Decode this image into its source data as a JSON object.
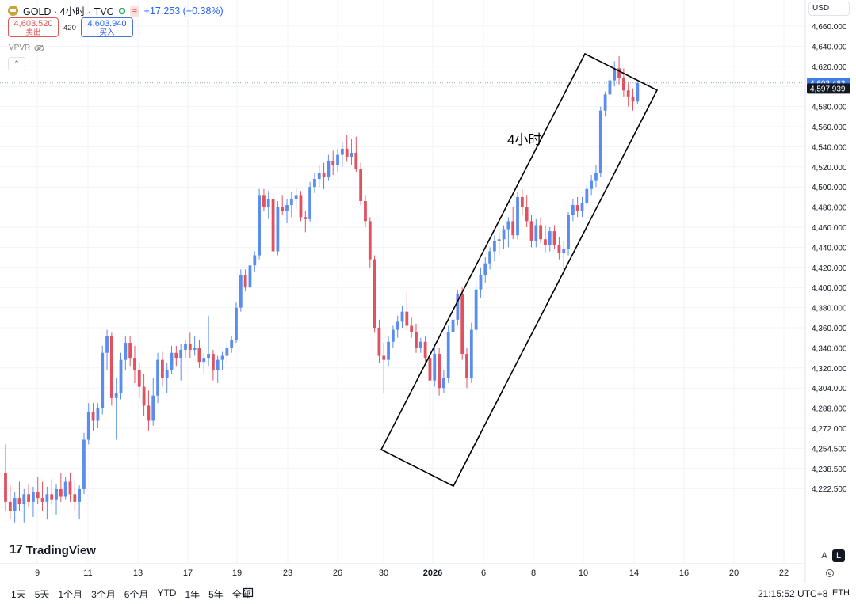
{
  "header": {
    "symbol_line": "GOLD · 4小时 · TVC",
    "change": "+17.253 (+0.38%)",
    "sell_price": "4,603.520",
    "sell_label": "卖出",
    "spread": "420",
    "buy_price": "4,603.940",
    "buy_label": "买入",
    "indicator": "VPVR",
    "collapse_glyph": "⌃",
    "currency": "USD"
  },
  "colors": {
    "up": "#5b8def",
    "down": "#e05260",
    "price_tag": "#3f7be6",
    "bid_tag": "#131722"
  },
  "annotation_text": "4小时",
  "brand": "TradingView",
  "bottom": {
    "ranges": [
      "1天",
      "5天",
      "1个月",
      "3个月",
      "6个月",
      "YTD",
      "1年",
      "5年",
      "全部"
    ],
    "clock": "21:15:52 UTC+8",
    "session": "ETH",
    "scale_a": "A",
    "scale_l": "L"
  },
  "chart_data": {
    "type": "candlestick",
    "y_axis_labels": [
      "4,660.000",
      "4,640.000",
      "4,620.000",
      "4,600.000",
      "4,580.000",
      "4,560.000",
      "4,540.000",
      "4,520.000",
      "4,500.000",
      "4,480.000",
      "4,460.000",
      "4,440.000",
      "4,420.000",
      "4,400.000",
      "4,380.000",
      "4,360.000",
      "4,340.000",
      "4,320.000",
      "4,304.000",
      "4,288.000",
      "4,272.000",
      "4,254.500",
      "4,238.500",
      "4,222.500"
    ],
    "x_axis_labels": [
      "9",
      "11",
      "13",
      "17",
      "19",
      "23",
      "26",
      "30",
      "2026",
      "6",
      "8",
      "10",
      "14",
      "16",
      "20",
      "22"
    ],
    "last_price_label": "4,603.483",
    "bid_label": "4,597.939",
    "ohlc": [
      [
        4235,
        4258,
        4205,
        4212
      ],
      [
        4212,
        4225,
        4198,
        4205
      ],
      [
        4205,
        4220,
        4195,
        4215
      ],
      [
        4215,
        4228,
        4205,
        4210
      ],
      [
        4210,
        4222,
        4195,
        4218
      ],
      [
        4218,
        4226,
        4208,
        4212
      ],
      [
        4212,
        4224,
        4200,
        4220
      ],
      [
        4220,
        4232,
        4210,
        4215
      ],
      [
        4215,
        4228,
        4205,
        4212
      ],
      [
        4212,
        4224,
        4198,
        4218
      ],
      [
        4218,
        4230,
        4210,
        4214
      ],
      [
        4214,
        4226,
        4202,
        4222
      ],
      [
        4222,
        4235,
        4212,
        4216
      ],
      [
        4216,
        4232,
        4214,
        4228
      ],
      [
        4228,
        4235,
        4212,
        4218
      ],
      [
        4218,
        4230,
        4205,
        4212
      ],
      [
        4212,
        4225,
        4198,
        4222
      ],
      [
        4222,
        4268,
        4218,
        4262
      ],
      [
        4262,
        4292,
        4258,
        4285
      ],
      [
        4285,
        4292,
        4270,
        4278
      ],
      [
        4278,
        4292,
        4272,
        4288
      ],
      [
        4288,
        4342,
        4283,
        4335
      ],
      [
        4335,
        4358,
        4318,
        4352
      ],
      [
        4352,
        4355,
        4290,
        4296
      ],
      [
        4296,
        4312,
        4262,
        4300
      ],
      [
        4300,
        4335,
        4295,
        4328
      ],
      [
        4328,
        4352,
        4318,
        4345
      ],
      [
        4345,
        4352,
        4322,
        4330
      ],
      [
        4330,
        4342,
        4308,
        4318
      ],
      [
        4318,
        4325,
        4296,
        4305
      ],
      [
        4305,
        4315,
        4282,
        4290
      ],
      [
        4290,
        4302,
        4270,
        4278
      ],
      [
        4278,
        4312,
        4274,
        4298
      ],
      [
        4298,
        4335,
        4292,
        4328
      ],
      [
        4328,
        4336,
        4305,
        4312
      ],
      [
        4312,
        4325,
        4300,
        4318
      ],
      [
        4318,
        4342,
        4315,
        4335
      ],
      [
        4335,
        4342,
        4322,
        4330
      ],
      [
        4330,
        4344,
        4310,
        4338
      ],
      [
        4338,
        4348,
        4330,
        4344
      ],
      [
        4344,
        4355,
        4330,
        4338
      ],
      [
        4338,
        4352,
        4332,
        4340
      ],
      [
        4340,
        4348,
        4320,
        4326
      ],
      [
        4326,
        4335,
        4315,
        4330
      ],
      [
        4330,
        4372,
        4322,
        4334
      ],
      [
        4334,
        4338,
        4310,
        4318
      ],
      [
        4318,
        4332,
        4308,
        4328
      ],
      [
        4328,
        4336,
        4318,
        4332
      ],
      [
        4332,
        4346,
        4325,
        4340
      ],
      [
        4340,
        4352,
        4335,
        4348
      ],
      [
        4348,
        4385,
        4345,
        4380
      ],
      [
        4380,
        4418,
        4376,
        4412
      ],
      [
        4412,
        4418,
        4396,
        4400
      ],
      [
        4400,
        4428,
        4398,
        4422
      ],
      [
        4422,
        4436,
        4415,
        4432
      ],
      [
        4432,
        4498,
        4428,
        4492
      ],
      [
        4492,
        4498,
        4476,
        4480
      ],
      [
        4480,
        4496,
        4468,
        4488
      ],
      [
        4488,
        4492,
        4430,
        4436
      ],
      [
        4436,
        4486,
        4432,
        4480
      ],
      [
        4480,
        4492,
        4472,
        4476
      ],
      [
        4476,
        4488,
        4464,
        4482
      ],
      [
        4482,
        4495,
        4470,
        4488
      ],
      [
        4488,
        4500,
        4478,
        4492
      ],
      [
        4492,
        4496,
        4466,
        4470
      ],
      [
        4470,
        4476,
        4455,
        4468
      ],
      [
        4468,
        4505,
        4465,
        4500
      ],
      [
        4500,
        4514,
        4494,
        4508
      ],
      [
        4508,
        4522,
        4500,
        4514
      ],
      [
        4514,
        4524,
        4498,
        4510
      ],
      [
        4510,
        4532,
        4506,
        4526
      ],
      [
        4526,
        4536,
        4512,
        4522
      ],
      [
        4522,
        4538,
        4515,
        4532
      ],
      [
        4532,
        4545,
        4520,
        4538
      ],
      [
        4538,
        4552,
        4525,
        4530
      ],
      [
        4530,
        4548,
        4522,
        4534
      ],
      [
        4534,
        4550,
        4515,
        4518
      ],
      [
        4518,
        4524,
        4482,
        4486
      ],
      [
        4486,
        4492,
        4460,
        4466
      ],
      [
        4466,
        4470,
        4420,
        4428
      ],
      [
        4428,
        4432,
        4355,
        4360
      ],
      [
        4360,
        4368,
        4325,
        4332
      ],
      [
        4332,
        4345,
        4300,
        4328
      ],
      [
        4328,
        4352,
        4322,
        4346
      ],
      [
        4346,
        4362,
        4340,
        4358
      ],
      [
        4358,
        4372,
        4350,
        4366
      ],
      [
        4366,
        4382,
        4360,
        4376
      ],
      [
        4376,
        4395,
        4358,
        4362
      ],
      [
        4362,
        4370,
        4350,
        4356
      ],
      [
        4356,
        4364,
        4335,
        4340
      ],
      [
        4340,
        4350,
        4335,
        4346
      ],
      [
        4346,
        4352,
        4325,
        4330
      ],
      [
        4330,
        4338,
        4275,
        4310
      ],
      [
        4310,
        4340,
        4305,
        4334
      ],
      [
        4334,
        4340,
        4298,
        4304
      ],
      [
        4304,
        4318,
        4300,
        4312
      ],
      [
        4312,
        4362,
        4308,
        4356
      ],
      [
        4356,
        4372,
        4350,
        4368
      ],
      [
        4368,
        4398,
        4362,
        4394
      ],
      [
        4394,
        4400,
        4328,
        4334
      ],
      [
        4334,
        4340,
        4304,
        4312
      ],
      [
        4312,
        4365,
        4308,
        4358
      ],
      [
        4358,
        4406,
        4352,
        4398
      ],
      [
        4398,
        4420,
        4390,
        4412
      ],
      [
        4412,
        4430,
        4405,
        4424
      ],
      [
        4424,
        4440,
        4418,
        4436
      ],
      [
        4436,
        4452,
        4426,
        4446
      ],
      [
        4446,
        4455,
        4432,
        4448
      ],
      [
        4448,
        4462,
        4438,
        4458
      ],
      [
        4458,
        4470,
        4440,
        4466
      ],
      [
        4466,
        4480,
        4448,
        4452
      ],
      [
        4452,
        4495,
        4448,
        4490
      ],
      [
        4490,
        4498,
        4472,
        4480
      ],
      [
        4480,
        4492,
        4460,
        4466
      ],
      [
        4466,
        4472,
        4440,
        4446
      ],
      [
        4446,
        4468,
        4440,
        4462
      ],
      [
        4462,
        4470,
        4444,
        4448
      ],
      [
        4448,
        4462,
        4435,
        4442
      ],
      [
        4442,
        4460,
        4436,
        4456
      ],
      [
        4456,
        4462,
        4438,
        4442
      ],
      [
        4442,
        4450,
        4428,
        4434
      ],
      [
        4434,
        4446,
        4412,
        4438
      ],
      [
        4438,
        4475,
        4432,
        4472
      ],
      [
        4472,
        4488,
        4466,
        4482
      ],
      [
        4482,
        4490,
        4470,
        4476
      ],
      [
        4476,
        4490,
        4470,
        4484
      ],
      [
        4484,
        4502,
        4480,
        4498
      ],
      [
        4498,
        4512,
        4492,
        4506
      ],
      [
        4506,
        4522,
        4500,
        4514
      ],
      [
        4514,
        4580,
        4510,
        4576
      ],
      [
        4576,
        4595,
        4570,
        4592
      ],
      [
        4592,
        4610,
        4585,
        4606
      ],
      [
        4606,
        4625,
        4600,
        4618
      ],
      [
        4618,
        4630,
        4602,
        4608
      ],
      [
        4608,
        4618,
        4590,
        4596
      ],
      [
        4596,
        4605,
        4580,
        4590
      ],
      [
        4590,
        4598,
        4576,
        4585
      ],
      [
        4585,
        4604,
        4582,
        4603.483
      ]
    ]
  }
}
